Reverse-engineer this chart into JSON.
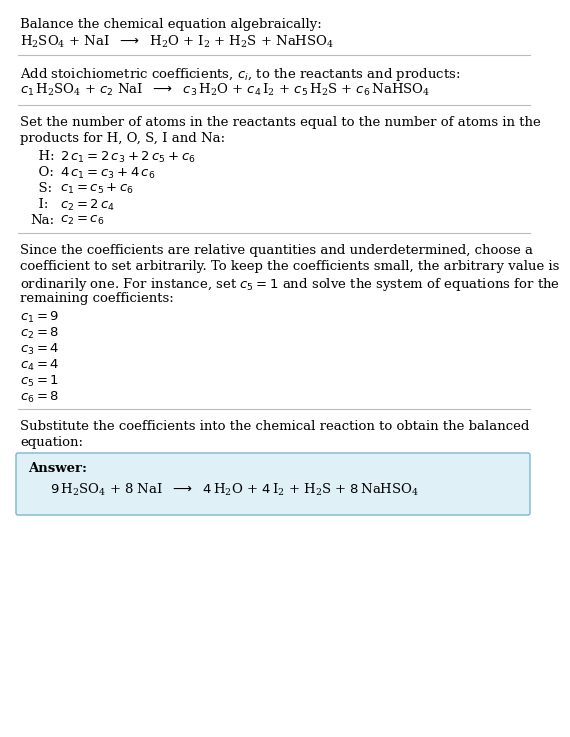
{
  "bg_color": "#ffffff",
  "text_color": "#000000",
  "separator_color": "#bbbbbb",
  "box_edge_color": "#7ab8cc",
  "box_face_color": "#dff0f7",
  "font_size": 9.5,
  "sections": {
    "s1_title": "Balance the chemical equation algebraically:",
    "s2_title": "Add stoichiometric coefficients, $c_i$, to the reactants and products:",
    "s3_title_l1": "Set the number of atoms in the reactants equal to the number of atoms in the",
    "s3_title_l2": "products for H, O, S, I and Na:",
    "s4_title_l1": "Since the coefficients are relative quantities and underdetermined, choose a",
    "s4_title_l2": "coefficient to set arbitrarily. To keep the coefficients small, the arbitrary value is",
    "s4_title_l3": "ordinarily one. For instance, set $c_5 = 1$ and solve the system of equations for the",
    "s4_title_l4": "remaining coefficients:",
    "s5_title_l1": "Substitute the coefficients into the chemical reaction to obtain the balanced",
    "s5_title_l2": "equation:",
    "answer_label": "Answer:"
  }
}
